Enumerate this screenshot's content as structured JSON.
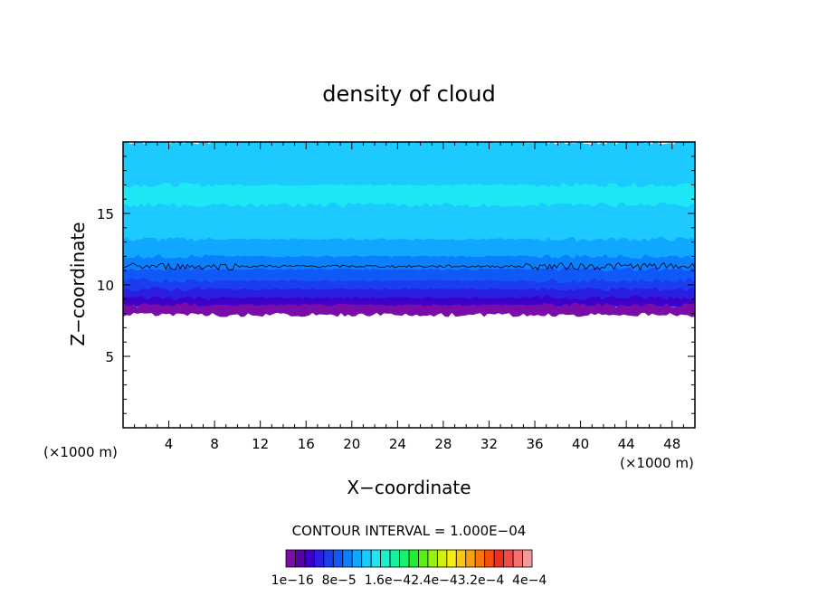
{
  "chart_data": {
    "type": "heatmap",
    "title": "density of cloud",
    "xlabel": "X−coordinate",
    "ylabel": "Z−coordinate",
    "x_unit_label": "(×1000 m)",
    "y_unit_label": "(×1000 m)",
    "xlim": [
      0,
      50
    ],
    "ylim": [
      0,
      20
    ],
    "x_ticks": [
      4,
      8,
      12,
      16,
      20,
      24,
      28,
      32,
      36,
      40,
      44,
      48
    ],
    "x_tick_labels": [
      "4",
      "8",
      "12",
      "16",
      "20",
      "24",
      "28",
      "32",
      "36",
      "40",
      "44",
      "48"
    ],
    "y_ticks": [
      5,
      10,
      15
    ],
    "y_tick_labels": [
      "5",
      "10",
      "15"
    ],
    "contour_interval_label": "CONTOUR INTERVAL = 1.000E−04",
    "colorbar": {
      "colors": [
        "#7a0ca8",
        "#5a00a8",
        "#3c00c8",
        "#2a1ee0",
        "#1c3cf0",
        "#1058f8",
        "#0a80ff",
        "#10a8ff",
        "#1ccaff",
        "#1ee6f4",
        "#1cf0cc",
        "#18f0a0",
        "#1af070",
        "#22ee30",
        "#58ee18",
        "#98f010",
        "#d0f010",
        "#f4ee10",
        "#f8c810",
        "#f8a010",
        "#f87810",
        "#f84e10",
        "#f02e20",
        "#f44a4a",
        "#f47070",
        "#f49a9a"
      ],
      "tick_labels": [
        "1e−16",
        "8e−5",
        "1.6e−4",
        "2.4e−4",
        "3.2e−4",
        "4e−4"
      ],
      "tick_label_text": "1e−16  8e−5  1.6e−42.4e−43.2e−4  4e−4"
    },
    "layers": [
      {
        "z_from": 19.8,
        "z_to": 20.0,
        "color": "#1ccaff",
        "density": "1.6e-4 band"
      },
      {
        "z_from": 15.8,
        "z_to": 17.0,
        "color": "#1ee6f4"
      },
      {
        "z_from": 13.2,
        "z_to": 19.8,
        "color": "#1ccaff"
      },
      {
        "z_from": 12.0,
        "z_to": 13.2,
        "color": "#10a8ff"
      },
      {
        "z_from": 11.0,
        "z_to": 12.0,
        "color": "#0a80ff"
      },
      {
        "z_from": 10.2,
        "z_to": 11.0,
        "color": "#1058f8"
      },
      {
        "z_from": 9.6,
        "z_to": 10.2,
        "color": "#1c3cf0"
      },
      {
        "z_from": 9.0,
        "z_to": 9.6,
        "color": "#2a1ee0"
      },
      {
        "z_from": 8.5,
        "z_to": 9.0,
        "color": "#3c00c8"
      },
      {
        "z_from": 7.9,
        "z_to": 8.5,
        "color": "#7a0ca8"
      }
    ],
    "contour_line_z": 11.3,
    "grid": false
  }
}
